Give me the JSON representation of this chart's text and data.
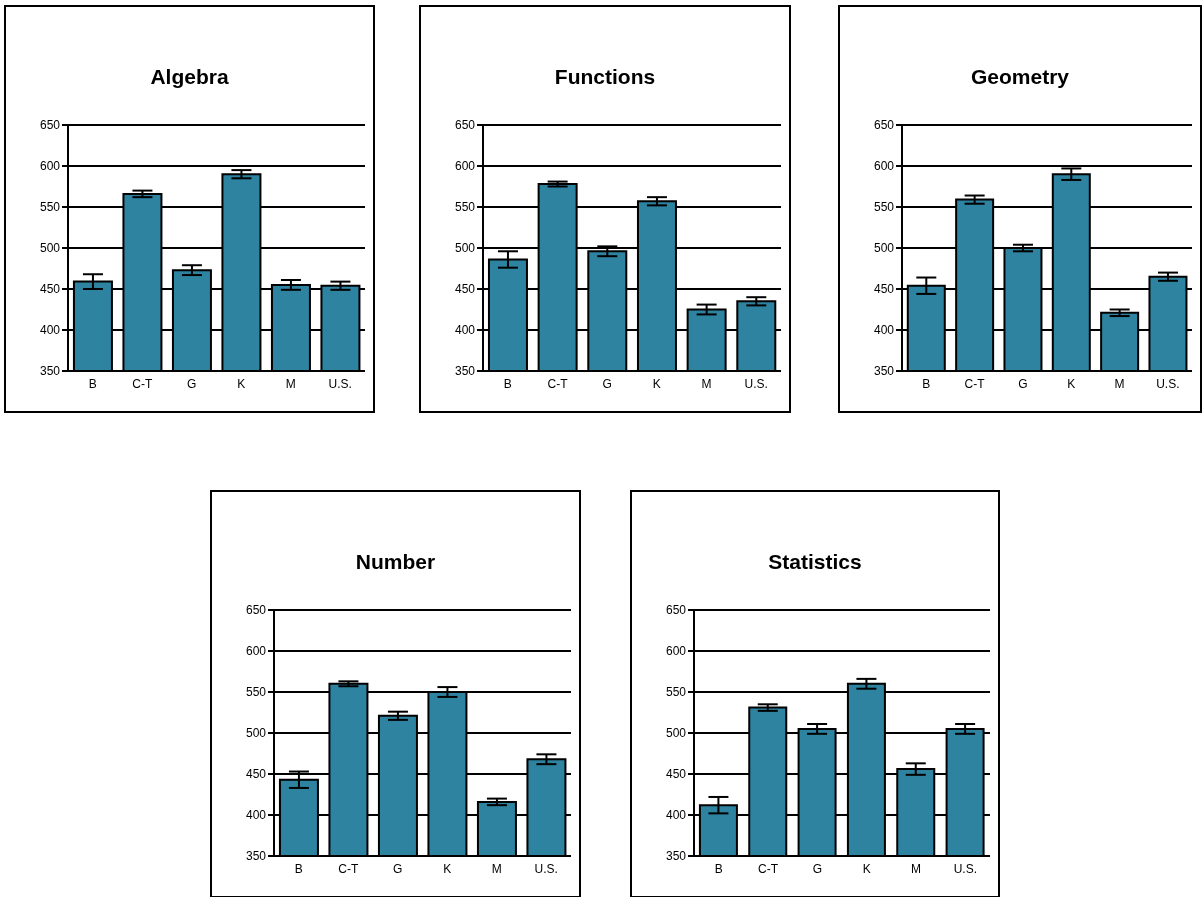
{
  "chart_data": [
    {
      "type": "bar",
      "title": "Algebra",
      "categories": [
        "B",
        "C-T",
        "G",
        "K",
        "M",
        "U.S."
      ],
      "values": [
        459,
        566,
        473,
        590,
        455,
        454
      ],
      "errors": [
        9,
        4,
        6,
        5,
        6,
        5
      ],
      "color": "#2e83a1",
      "ylim": [
        350,
        650
      ],
      "yticks": [
        350,
        400,
        450,
        500,
        550,
        600,
        650
      ],
      "grid": "y"
    },
    {
      "type": "bar",
      "title": "Functions",
      "categories": [
        "B",
        "C-T",
        "G",
        "K",
        "M",
        "U.S."
      ],
      "values": [
        486,
        578,
        496,
        557,
        425,
        435
      ],
      "errors": [
        10,
        3,
        6,
        5,
        6,
        5
      ],
      "color": "#2e83a1",
      "ylim": [
        350,
        650
      ],
      "yticks": [
        350,
        400,
        450,
        500,
        550,
        600,
        650
      ],
      "grid": "y"
    },
    {
      "type": "bar",
      "title": "Geometry",
      "categories": [
        "B",
        "C-T",
        "G",
        "K",
        "M",
        "U.S."
      ],
      "values": [
        454,
        559,
        500,
        590,
        421,
        465
      ],
      "errors": [
        10,
        5,
        4,
        7,
        4,
        5
      ],
      "color": "#2e83a1",
      "ylim": [
        350,
        650
      ],
      "yticks": [
        350,
        400,
        450,
        500,
        550,
        600,
        650
      ],
      "grid": "y"
    },
    {
      "type": "bar",
      "title": "Number",
      "categories": [
        "B",
        "C-T",
        "G",
        "K",
        "M",
        "U.S."
      ],
      "values": [
        443,
        560,
        521,
        550,
        416,
        468
      ],
      "errors": [
        10,
        3,
        5,
        6,
        4,
        6
      ],
      "color": "#2e83a1",
      "ylim": [
        350,
        650
      ],
      "yticks": [
        350,
        400,
        450,
        500,
        550,
        600,
        650
      ],
      "grid": "y"
    },
    {
      "type": "bar",
      "title": "Statistics",
      "categories": [
        "B",
        "C-T",
        "G",
        "K",
        "M",
        "U.S."
      ],
      "values": [
        412,
        531,
        505,
        560,
        456,
        505
      ],
      "errors": [
        10,
        4,
        6,
        6,
        7,
        6
      ],
      "color": "#2e83a1",
      "ylim": [
        350,
        650
      ],
      "yticks": [
        350,
        400,
        450,
        500,
        550,
        600,
        650
      ],
      "grid": "y"
    }
  ]
}
